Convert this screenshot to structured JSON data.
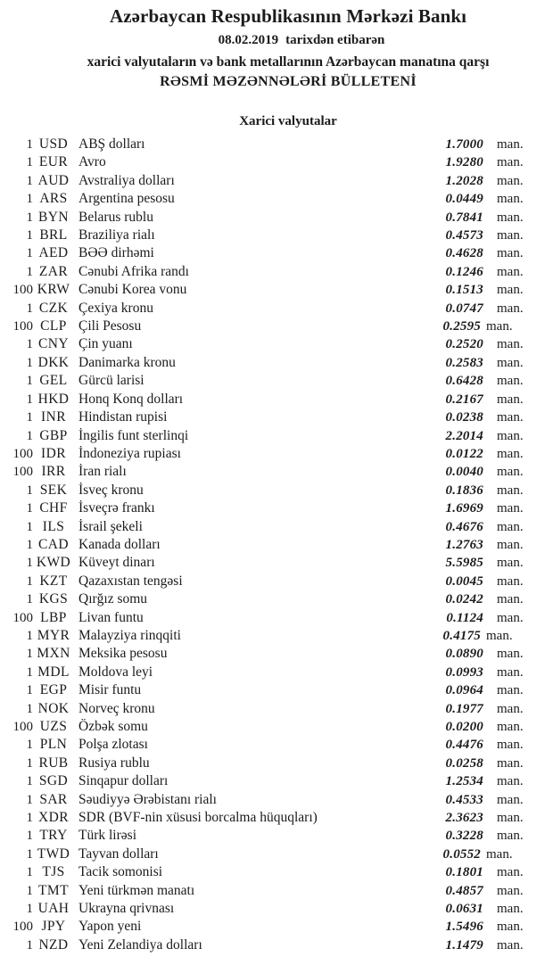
{
  "colors": {
    "text": "#1b1b1b",
    "background": "#ffffff"
  },
  "header": {
    "bank_name": "Azərbaycan Respublikasının Mərkəzi Bankı",
    "date": "08.02.2019",
    "date_suffix": "tarixdən etibarən",
    "subtitle": "xarici valyutaların və bank metallarının Azərbaycan manatına qarşı",
    "bulletin_title": "RƏSMİ MƏZƏNNƏLƏRİ BÜLLETENİ"
  },
  "section_title": "Xarici valyutalar",
  "table": {
    "unit_label": "man.",
    "rows": [
      {
        "qty": "1",
        "code": "USD",
        "name": "ABŞ dolları",
        "rate": "1.7000"
      },
      {
        "qty": "1",
        "code": "EUR",
        "name": "Avro",
        "rate": "1.9280"
      },
      {
        "qty": "1",
        "code": "AUD",
        "name": "Avstraliya dolları",
        "rate": "1.2028"
      },
      {
        "qty": "1",
        "code": "ARS",
        "name": "Argentina pesosu",
        "rate": "0.0449"
      },
      {
        "qty": "1",
        "code": "BYN",
        "name": "Belarus rublu",
        "rate": "0.7841"
      },
      {
        "qty": "1",
        "code": "BRL",
        "name": "Braziliya rialı",
        "rate": "0.4573"
      },
      {
        "qty": "1",
        "code": "AED",
        "name": "BƏƏ dirhəmi",
        "rate": "0.4628"
      },
      {
        "qty": "1",
        "code": "ZAR",
        "name": "Cənubi Afrika randı",
        "rate": "0.1246"
      },
      {
        "qty": "100",
        "code": "KRW",
        "name": "Cənubi Korea vonu",
        "rate": "0.1513"
      },
      {
        "qty": "1",
        "code": "CZK",
        "name": "Çexiya kronu",
        "rate": "0.0747"
      },
      {
        "qty": "100",
        "code": "CLP",
        "name": "Çili Pesosu",
        "rate": "0.2595",
        "tight": true
      },
      {
        "qty": "1",
        "code": "CNY",
        "name": "Çin yuanı",
        "rate": "0.2520"
      },
      {
        "qty": "1",
        "code": "DKK",
        "name": "Danimarka kronu",
        "rate": "0.2583"
      },
      {
        "qty": "1",
        "code": "GEL",
        "name": "Gürcü larisi",
        "rate": "0.6428"
      },
      {
        "qty": "1",
        "code": "HKD",
        "name": "Honq Konq dolları",
        "rate": "0.2167"
      },
      {
        "qty": "1",
        "code": "INR",
        "name": "Hindistan rupisi",
        "rate": "0.0238"
      },
      {
        "qty": "1",
        "code": "GBP",
        "name": "İngilis funt sterlinqi",
        "rate": "2.2014"
      },
      {
        "qty": "100",
        "code": "IDR",
        "name": "İndoneziya rupiası",
        "rate": "0.0122"
      },
      {
        "qty": "100",
        "code": "IRR",
        "name": "İran rialı",
        "rate": "0.0040"
      },
      {
        "qty": "1",
        "code": "SEK",
        "name": "İsveç kronu",
        "rate": "0.1836"
      },
      {
        "qty": "1",
        "code": "CHF",
        "name": "İsveçrə frankı",
        "rate": "1.6969"
      },
      {
        "qty": "1",
        "code": "ILS",
        "name": "İsrail şekeli",
        "rate": "0.4676"
      },
      {
        "qty": "1",
        "code": "CAD",
        "name": "Kanada dolları",
        "rate": "1.2763"
      },
      {
        "qty": "1",
        "code": "KWD",
        "name": "Küveyt dinarı",
        "rate": "5.5985"
      },
      {
        "qty": "1",
        "code": "KZT",
        "name": "Qazaxıstan tengəsi",
        "rate": "0.0045"
      },
      {
        "qty": "1",
        "code": "KGS",
        "name": "Qırğız somu",
        "rate": "0.0242"
      },
      {
        "qty": "100",
        "code": "LBP",
        "name": "Livan funtu",
        "rate": "0.1124"
      },
      {
        "qty": "1",
        "code": "MYR",
        "name": "Malayziya rinqqiti",
        "rate": "0.4175",
        "tight": true
      },
      {
        "qty": "1",
        "code": "MXN",
        "name": "Meksika pesosu",
        "rate": "0.0890"
      },
      {
        "qty": "1",
        "code": "MDL",
        "name": "Moldova leyi",
        "rate": "0.0993"
      },
      {
        "qty": "1",
        "code": "EGP",
        "name": "Misir funtu",
        "rate": "0.0964"
      },
      {
        "qty": "1",
        "code": "NOK",
        "name": "Norveç kronu",
        "rate": "0.1977"
      },
      {
        "qty": "100",
        "code": "UZS",
        "name": "Özbək somu",
        "rate": "0.0200"
      },
      {
        "qty": "1",
        "code": "PLN",
        "name": "Polşa zlotası",
        "rate": "0.4476"
      },
      {
        "qty": "1",
        "code": "RUB",
        "name": "Rusiya rublu",
        "rate": "0.0258"
      },
      {
        "qty": "1",
        "code": "SGD",
        "name": "Sinqapur dolları",
        "rate": "1.2534"
      },
      {
        "qty": "1",
        "code": "SAR",
        "name": "Səudiyyə Ərəbistanı rialı",
        "rate": "0.4533"
      },
      {
        "qty": "1",
        "code": "XDR",
        "name": "SDR (BVF-nin xüsusi borcalma hüquqları)",
        "rate": "2.3623"
      },
      {
        "qty": "1",
        "code": "TRY",
        "name": "Türk lirəsi",
        "rate": "0.3228"
      },
      {
        "qty": "1",
        "code": "TWD",
        "name": "Tayvan dolları",
        "rate": "0.0552",
        "tight": true
      },
      {
        "qty": "1",
        "code": "TJS",
        "name": "Tacik somonisi",
        "rate": "0.1801"
      },
      {
        "qty": "1",
        "code": "TMT",
        "name": "Yeni türkmən manatı",
        "rate": "0.4857"
      },
      {
        "qty": "1",
        "code": "UAH",
        "name": "Ukrayna qrivnası",
        "rate": "0.0631"
      },
      {
        "qty": "100",
        "code": "JPY",
        "name": "Yapon yeni",
        "rate": "1.5496"
      },
      {
        "qty": "1",
        "code": "NZD",
        "name": "Yeni Zelandiya dolları",
        "rate": "1.1479"
      }
    ]
  }
}
